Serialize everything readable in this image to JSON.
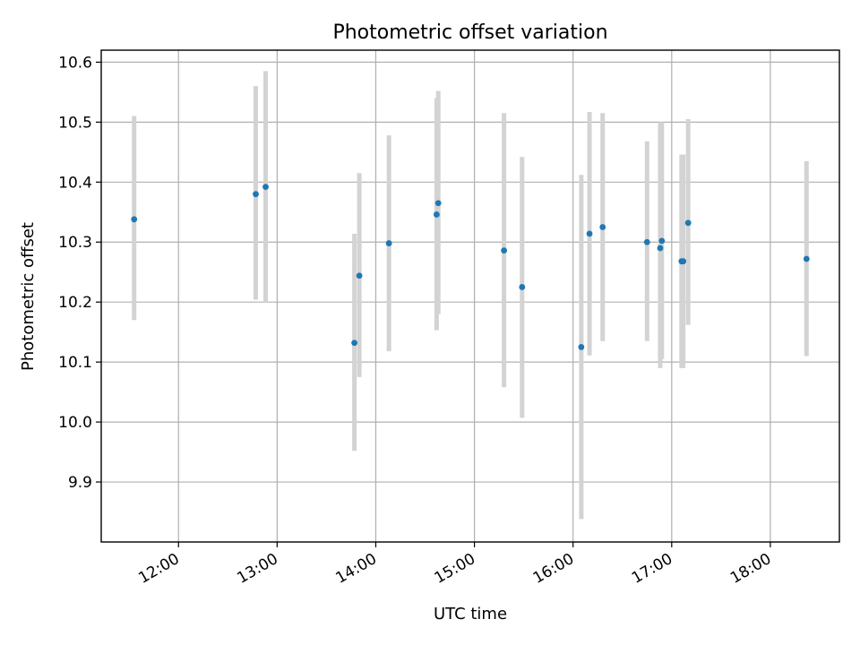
{
  "chart_data": {
    "type": "scatter",
    "title": "Photometric offset variation",
    "xlabel": "UTC time",
    "ylabel": "Photometric offset",
    "xlim": [
      "11:13",
      "18:42"
    ],
    "ylim": [
      9.8,
      10.62
    ],
    "x_ticks": [
      "12:00",
      "13:00",
      "14:00",
      "15:00",
      "16:00",
      "17:00",
      "18:00"
    ],
    "y_ticks": [
      "9.9",
      "10.0",
      "10.1",
      "10.2",
      "10.3",
      "10.4",
      "10.5",
      "10.6"
    ],
    "grid": true,
    "colors": {
      "points": "#1f77b4",
      "error_bars": "#d3d3d3"
    },
    "points": [
      {
        "x": "11:33",
        "y": 10.338,
        "ylow": 10.17,
        "yhigh": 10.51
      },
      {
        "x": "12:47",
        "y": 10.38,
        "ylow": 10.204,
        "yhigh": 10.56
      },
      {
        "x": "12:53",
        "y": 10.392,
        "ylow": 10.2,
        "yhigh": 10.585
      },
      {
        "x": "13:47",
        "y": 10.132,
        "ylow": 9.952,
        "yhigh": 10.314
      },
      {
        "x": "13:50",
        "y": 10.244,
        "ylow": 10.075,
        "yhigh": 10.415
      },
      {
        "x": "14:08",
        "y": 10.298,
        "ylow": 10.118,
        "yhigh": 10.478
      },
      {
        "x": "14:37",
        "y": 10.346,
        "ylow": 10.153,
        "yhigh": 10.54
      },
      {
        "x": "14:38",
        "y": 10.365,
        "ylow": 10.18,
        "yhigh": 10.552
      },
      {
        "x": "15:18",
        "y": 10.286,
        "ylow": 10.058,
        "yhigh": 10.515
      },
      {
        "x": "15:29",
        "y": 10.225,
        "ylow": 10.007,
        "yhigh": 10.442
      },
      {
        "x": "16:05",
        "y": 10.125,
        "ylow": 9.838,
        "yhigh": 10.412
      },
      {
        "x": "16:10",
        "y": 10.314,
        "ylow": 10.111,
        "yhigh": 10.517
      },
      {
        "x": "16:18",
        "y": 10.325,
        "ylow": 10.135,
        "yhigh": 10.515
      },
      {
        "x": "16:45",
        "y": 10.3,
        "ylow": 10.135,
        "yhigh": 10.468
      },
      {
        "x": "16:53",
        "y": 10.29,
        "ylow": 10.09,
        "yhigh": 10.5
      },
      {
        "x": "16:54",
        "y": 10.302,
        "ylow": 10.105,
        "yhigh": 10.5
      },
      {
        "x": "17:06",
        "y": 10.268,
        "ylow": 10.09,
        "yhigh": 10.446
      },
      {
        "x": "17:07",
        "y": 10.268,
        "ylow": 10.09,
        "yhigh": 10.446
      },
      {
        "x": "17:10",
        "y": 10.332,
        "ylow": 10.162,
        "yhigh": 10.505
      },
      {
        "x": "18:22",
        "y": 10.272,
        "ylow": 10.11,
        "yhigh": 10.435
      }
    ]
  }
}
